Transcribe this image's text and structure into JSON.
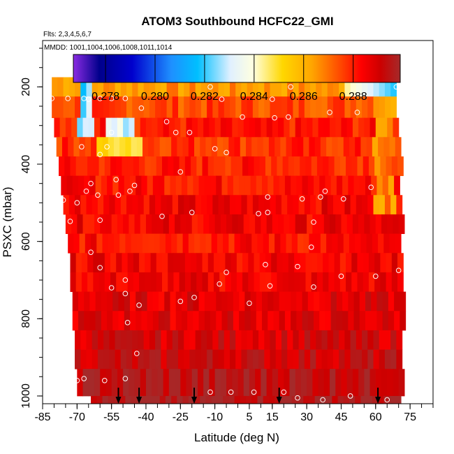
{
  "chart_data": {
    "type": "heatmap",
    "title": "ATOM3 Southbound HCFC22_GMI",
    "flights_note": "Flts: 2,3,4,5,6,7",
    "dates_note": "MMDD: 1001,1004,1006,1008,1011,1014",
    "xlabel": "Latitude (deg N)",
    "ylabel": "PSXC (mbar)",
    "xlim": [
      -85,
      85
    ],
    "ylim": [
      1020,
      80
    ],
    "x_ticks": [
      -85,
      -70,
      -55,
      -40,
      -25,
      -10,
      5,
      15,
      30,
      45,
      60,
      75
    ],
    "y_ticks": [
      200,
      400,
      600,
      800,
      1000
    ],
    "colorbar": {
      "range": [
        0.2767,
        0.2899
      ],
      "ticks": [
        0.278,
        0.28,
        0.282,
        0.284,
        0.286,
        0.288
      ],
      "tick_labels": [
        "0.278",
        "0.280",
        "0.282",
        "0.284",
        "0.286",
        "0.288"
      ],
      "colors": [
        "#8a2be2",
        "#00008b",
        "#0000cd",
        "#1e90ff",
        "#00bfff",
        "#e0f0ff",
        "#ffffe0",
        "#ffd700",
        "#ffa500",
        "#ff4500",
        "#ff0000",
        "#cc0000",
        "#a52a2a"
      ]
    },
    "profile_bottom_arrow_latitudes": [
      -52,
      -43,
      -19,
      18,
      61
    ],
    "layers_summary": [
      {
        "p_top": 175,
        "p_bottom": 225,
        "lat_start": -81,
        "lat_end": 69,
        "typical": 0.2865
      },
      {
        "p_top": 225,
        "p_bottom": 280,
        "lat_start": -81,
        "lat_end": 69,
        "typical": 0.2875
      },
      {
        "p_top": 280,
        "p_bottom": 330,
        "lat_start": -80,
        "lat_end": 70,
        "typical": 0.288
      },
      {
        "p_top": 330,
        "p_bottom": 380,
        "lat_start": -79,
        "lat_end": 70,
        "typical": 0.2878
      },
      {
        "p_top": 380,
        "p_bottom": 430,
        "lat_start": -78,
        "lat_end": 70,
        "typical": 0.288
      },
      {
        "p_top": 430,
        "p_bottom": 480,
        "lat_start": -77,
        "lat_end": 70,
        "typical": 0.2882
      },
      {
        "p_top": 480,
        "p_bottom": 530,
        "lat_start": -76,
        "lat_end": 70,
        "typical": 0.2885
      },
      {
        "p_top": 530,
        "p_bottom": 580,
        "lat_start": -75,
        "lat_end": 71,
        "typical": 0.2885
      },
      {
        "p_top": 580,
        "p_bottom": 630,
        "lat_start": -74,
        "lat_end": 71,
        "typical": 0.2882
      },
      {
        "p_top": 630,
        "p_bottom": 680,
        "lat_start": -73,
        "lat_end": 71,
        "typical": 0.2885
      },
      {
        "p_top": 680,
        "p_bottom": 730,
        "lat_start": -73,
        "lat_end": 71,
        "typical": 0.2885
      },
      {
        "p_top": 730,
        "p_bottom": 780,
        "lat_start": -72,
        "lat_end": 71,
        "typical": 0.2888
      },
      {
        "p_top": 780,
        "p_bottom": 830,
        "lat_start": -72,
        "lat_end": 71,
        "typical": 0.2888
      },
      {
        "p_top": 830,
        "p_bottom": 880,
        "lat_start": -71,
        "lat_end": 71,
        "typical": 0.289
      },
      {
        "p_top": 880,
        "p_bottom": 930,
        "lat_start": -71,
        "lat_end": 71,
        "typical": 0.2892
      },
      {
        "p_top": 930,
        "p_bottom": 1000,
        "lat_start": -70,
        "lat_end": 71,
        "typical": 0.2895
      },
      {
        "p_top": 1000,
        "p_bottom": 1020,
        "lat_start": -64,
        "lat_end": 71,
        "typical": 0.2897
      }
    ]
  }
}
